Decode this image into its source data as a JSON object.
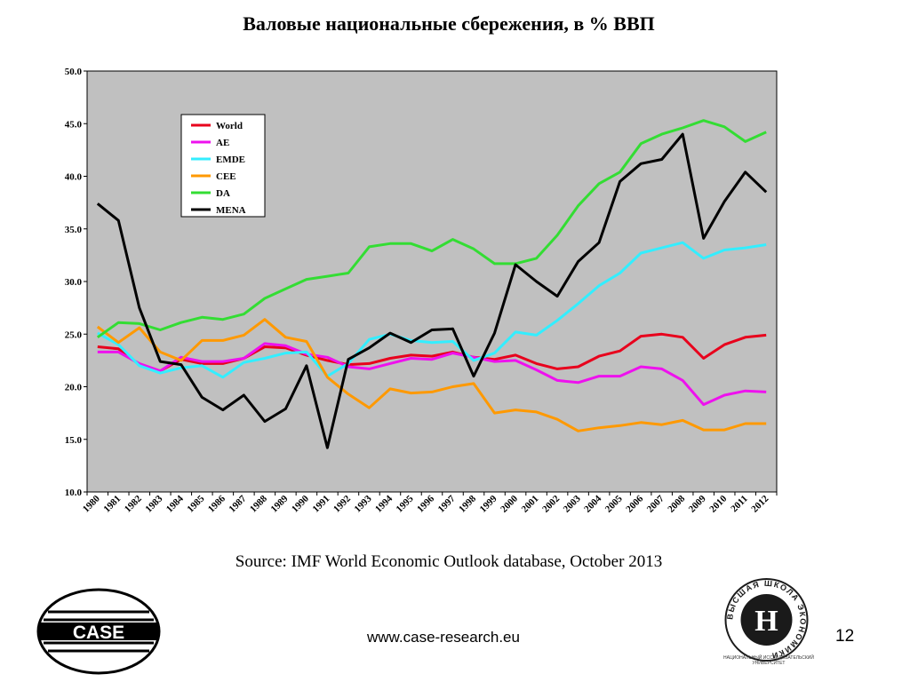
{
  "page": {
    "title": "Валовые национальные сбережения, в % ВВП",
    "source": "Source: IMF World Economic Outlook database, October 2013",
    "url": "www.case-research.eu",
    "page_number": "12",
    "logo_left_text": "CASE",
    "logo_right_caption_line1": "НАЦИОНАЛЬНЫЙ ИССЛЕДОВАТЕЛЬСКИЙ",
    "logo_right_caption_line2": "УНИВЕРСИТЕТ",
    "logo_right_ring_text": "ВЫСШАЯ ШКОЛА ЭКОНОМИКИ"
  },
  "colors": {
    "plot_bg": "#c0c0c0",
    "World": "#e8001c",
    "AE": "#ee11ee",
    "EMDE": "#33eeff",
    "CEE": "#ff9900",
    "DA": "#33dd33",
    "MENA": "#000000"
  },
  "chart_data": {
    "type": "line",
    "title": "Валовые национальные сбережения, в % ВВП",
    "xlabel": "",
    "ylabel": "",
    "ylim": [
      10,
      50
    ],
    "yticks": [
      "10.0",
      "15.0",
      "20.0",
      "25.0",
      "30.0",
      "35.0",
      "40.0",
      "45.0",
      "50.0"
    ],
    "grid": false,
    "legend_position": "top-left",
    "x": [
      "1980",
      "1981",
      "1982",
      "1983",
      "1984",
      "1985",
      "1986",
      "1987",
      "1988",
      "1989",
      "1990",
      "1991",
      "1992",
      "1993",
      "1994",
      "1995",
      "1996",
      "1997",
      "1998",
      "1999",
      "2000",
      "2001",
      "2002",
      "2003",
      "2004",
      "2005",
      "2006",
      "2007",
      "2008",
      "2009",
      "2010",
      "2011",
      "2012"
    ],
    "series": [
      {
        "name": "World",
        "values": [
          23.8,
          23.6,
          22.1,
          21.5,
          22.6,
          22.2,
          22.2,
          22.7,
          23.8,
          23.7,
          23.0,
          22.5,
          22.1,
          22.2,
          22.7,
          23.0,
          22.9,
          23.3,
          22.8,
          22.6,
          23.0,
          22.2,
          21.7,
          21.9,
          22.9,
          23.4,
          24.8,
          25.0,
          24.7,
          22.7,
          24.0,
          24.7,
          24.9
        ]
      },
      {
        "name": "AE",
        "values": [
          23.3,
          23.3,
          22.2,
          21.5,
          22.8,
          22.4,
          22.4,
          22.7,
          24.1,
          23.9,
          23.1,
          22.8,
          21.9,
          21.7,
          22.2,
          22.7,
          22.6,
          23.2,
          22.8,
          22.4,
          22.5,
          21.6,
          20.6,
          20.4,
          21.0,
          21.0,
          21.9,
          21.7,
          20.6,
          18.3,
          19.2,
          19.6,
          19.5
        ]
      },
      {
        "name": "EMDE",
        "values": [
          25.1,
          24.0,
          22.0,
          21.3,
          21.8,
          22.0,
          20.9,
          22.3,
          22.7,
          23.2,
          23.3,
          21.0,
          22.2,
          24.5,
          25.0,
          24.4,
          24.2,
          24.3,
          22.5,
          23.2,
          25.2,
          24.9,
          26.3,
          27.9,
          29.6,
          30.8,
          32.7,
          33.2,
          33.7,
          32.2,
          33.0,
          33.2,
          33.5
        ]
      },
      {
        "name": "CEE",
        "values": [
          25.7,
          24.2,
          25.6,
          23.3,
          22.5,
          24.4,
          24.4,
          24.9,
          26.4,
          24.7,
          24.3,
          20.9,
          19.3,
          18.0,
          19.8,
          19.4,
          19.5,
          20.0,
          20.3,
          17.5,
          17.8,
          17.6,
          16.9,
          15.8,
          16.1,
          16.3,
          16.6,
          16.4,
          16.8,
          15.9,
          15.9,
          16.5,
          16.5
        ]
      },
      {
        "name": "DA",
        "values": [
          24.7,
          26.1,
          26.0,
          25.4,
          26.1,
          26.6,
          26.4,
          26.9,
          28.4,
          29.3,
          30.2,
          30.5,
          30.8,
          33.3,
          33.6,
          33.6,
          32.9,
          34.0,
          33.1,
          31.7,
          31.7,
          32.2,
          34.4,
          37.2,
          39.3,
          40.4,
          43.1,
          44.0,
          44.6,
          45.3,
          44.7,
          43.3,
          44.2
        ]
      },
      {
        "name": "MENA",
        "values": [
          37.4,
          35.8,
          27.5,
          22.4,
          22.1,
          19.0,
          17.8,
          19.2,
          16.7,
          17.9,
          22.0,
          14.2,
          22.6,
          23.7,
          25.1,
          24.2,
          25.4,
          25.5,
          21.0,
          25.1,
          31.6,
          30.0,
          28.6,
          31.9,
          33.7,
          39.5,
          41.2,
          41.6,
          44.0,
          34.1,
          37.6,
          40.4,
          38.5
        ]
      }
    ]
  }
}
